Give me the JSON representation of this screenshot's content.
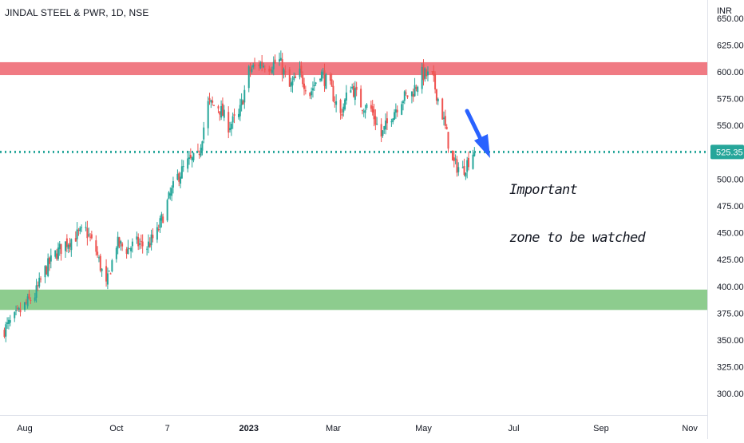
{
  "header": {
    "symbol_title": "JINDAL STEEL & PWR, 1D, NSE",
    "currency": "INR"
  },
  "annotation": {
    "line1": "Important",
    "line2": "zone to be watched"
  },
  "colors": {
    "up": "#26a69a",
    "down": "#ef5350",
    "resistance_zone": "#f07a83",
    "support_zone": "#8dcc8e",
    "level_line": "#26a69a",
    "arrow": "#2962ff",
    "price_badge": "#26a69a"
  },
  "chart_data": {
    "type": "candlestick",
    "title": "JINDAL STEEL & PWR, 1D, NSE",
    "ylabel": "INR",
    "ylim": [
      280,
      667
    ],
    "y_ticks": [
      300,
      325,
      350,
      375,
      400,
      425,
      450,
      475,
      500,
      525,
      550,
      575,
      600,
      625,
      650
    ],
    "x_ticks": [
      {
        "label": "Aug",
        "date": "2022-08-01"
      },
      {
        "label": "Oct",
        "date": "2022-10-03"
      },
      {
        "label": "7",
        "date": "2022-11-07"
      },
      {
        "label": "2023",
        "date": "2023-01-02"
      },
      {
        "label": "Mar",
        "date": "2023-03-01"
      },
      {
        "label": "May",
        "date": "2023-05-02"
      },
      {
        "label": "Jul",
        "date": "2023-07-03"
      },
      {
        "label": "Sep",
        "date": "2023-09-01"
      },
      {
        "label": "Nov",
        "date": "2023-11-01"
      }
    ],
    "last_price": 525.35,
    "zones": [
      {
        "name": "resistance",
        "from": 597,
        "to": 609
      },
      {
        "name": "support",
        "from": 378,
        "to": 397
      }
    ],
    "horizontal_level": 525.35,
    "annotation": "Important zone to be watched",
    "price_path": [
      [
        "2022-07-18",
        360
      ],
      [
        "2022-07-25",
        370
      ],
      [
        "2022-08-01",
        382
      ],
      [
        "2022-08-08",
        392
      ],
      [
        "2022-08-15",
        415
      ],
      [
        "2022-08-22",
        430
      ],
      [
        "2022-08-29",
        440
      ],
      [
        "2022-09-05",
        447
      ],
      [
        "2022-09-12",
        452
      ],
      [
        "2022-09-19",
        433
      ],
      [
        "2022-09-26",
        400
      ],
      [
        "2022-10-03",
        440
      ],
      [
        "2022-10-10",
        435
      ],
      [
        "2022-10-17",
        440
      ],
      [
        "2022-10-24",
        437
      ],
      [
        "2022-10-31",
        450
      ],
      [
        "2022-11-07",
        478
      ],
      [
        "2022-11-14",
        502
      ],
      [
        "2022-11-21",
        515
      ],
      [
        "2022-11-28",
        520
      ],
      [
        "2022-12-05",
        570
      ],
      [
        "2022-12-12",
        568
      ],
      [
        "2022-12-19",
        550
      ],
      [
        "2022-12-26",
        558
      ],
      [
        "2023-01-02",
        600
      ],
      [
        "2023-01-09",
        608
      ],
      [
        "2023-01-16",
        606
      ],
      [
        "2023-01-23",
        610
      ],
      [
        "2023-01-30",
        585
      ],
      [
        "2023-02-06",
        598
      ],
      [
        "2023-02-13",
        580
      ],
      [
        "2023-02-20",
        600
      ],
      [
        "2023-02-27",
        585
      ],
      [
        "2023-03-06",
        560
      ],
      [
        "2023-03-13",
        588
      ],
      [
        "2023-03-20",
        570
      ],
      [
        "2023-03-27",
        565
      ],
      [
        "2023-04-03",
        540
      ],
      [
        "2023-04-10",
        560
      ],
      [
        "2023-04-17",
        575
      ],
      [
        "2023-04-24",
        580
      ],
      [
        "2023-05-01",
        598
      ],
      [
        "2023-05-08",
        595
      ],
      [
        "2023-05-15",
        560
      ],
      [
        "2023-05-22",
        515
      ],
      [
        "2023-05-29",
        508
      ],
      [
        "2023-06-05",
        525
      ]
    ]
  }
}
